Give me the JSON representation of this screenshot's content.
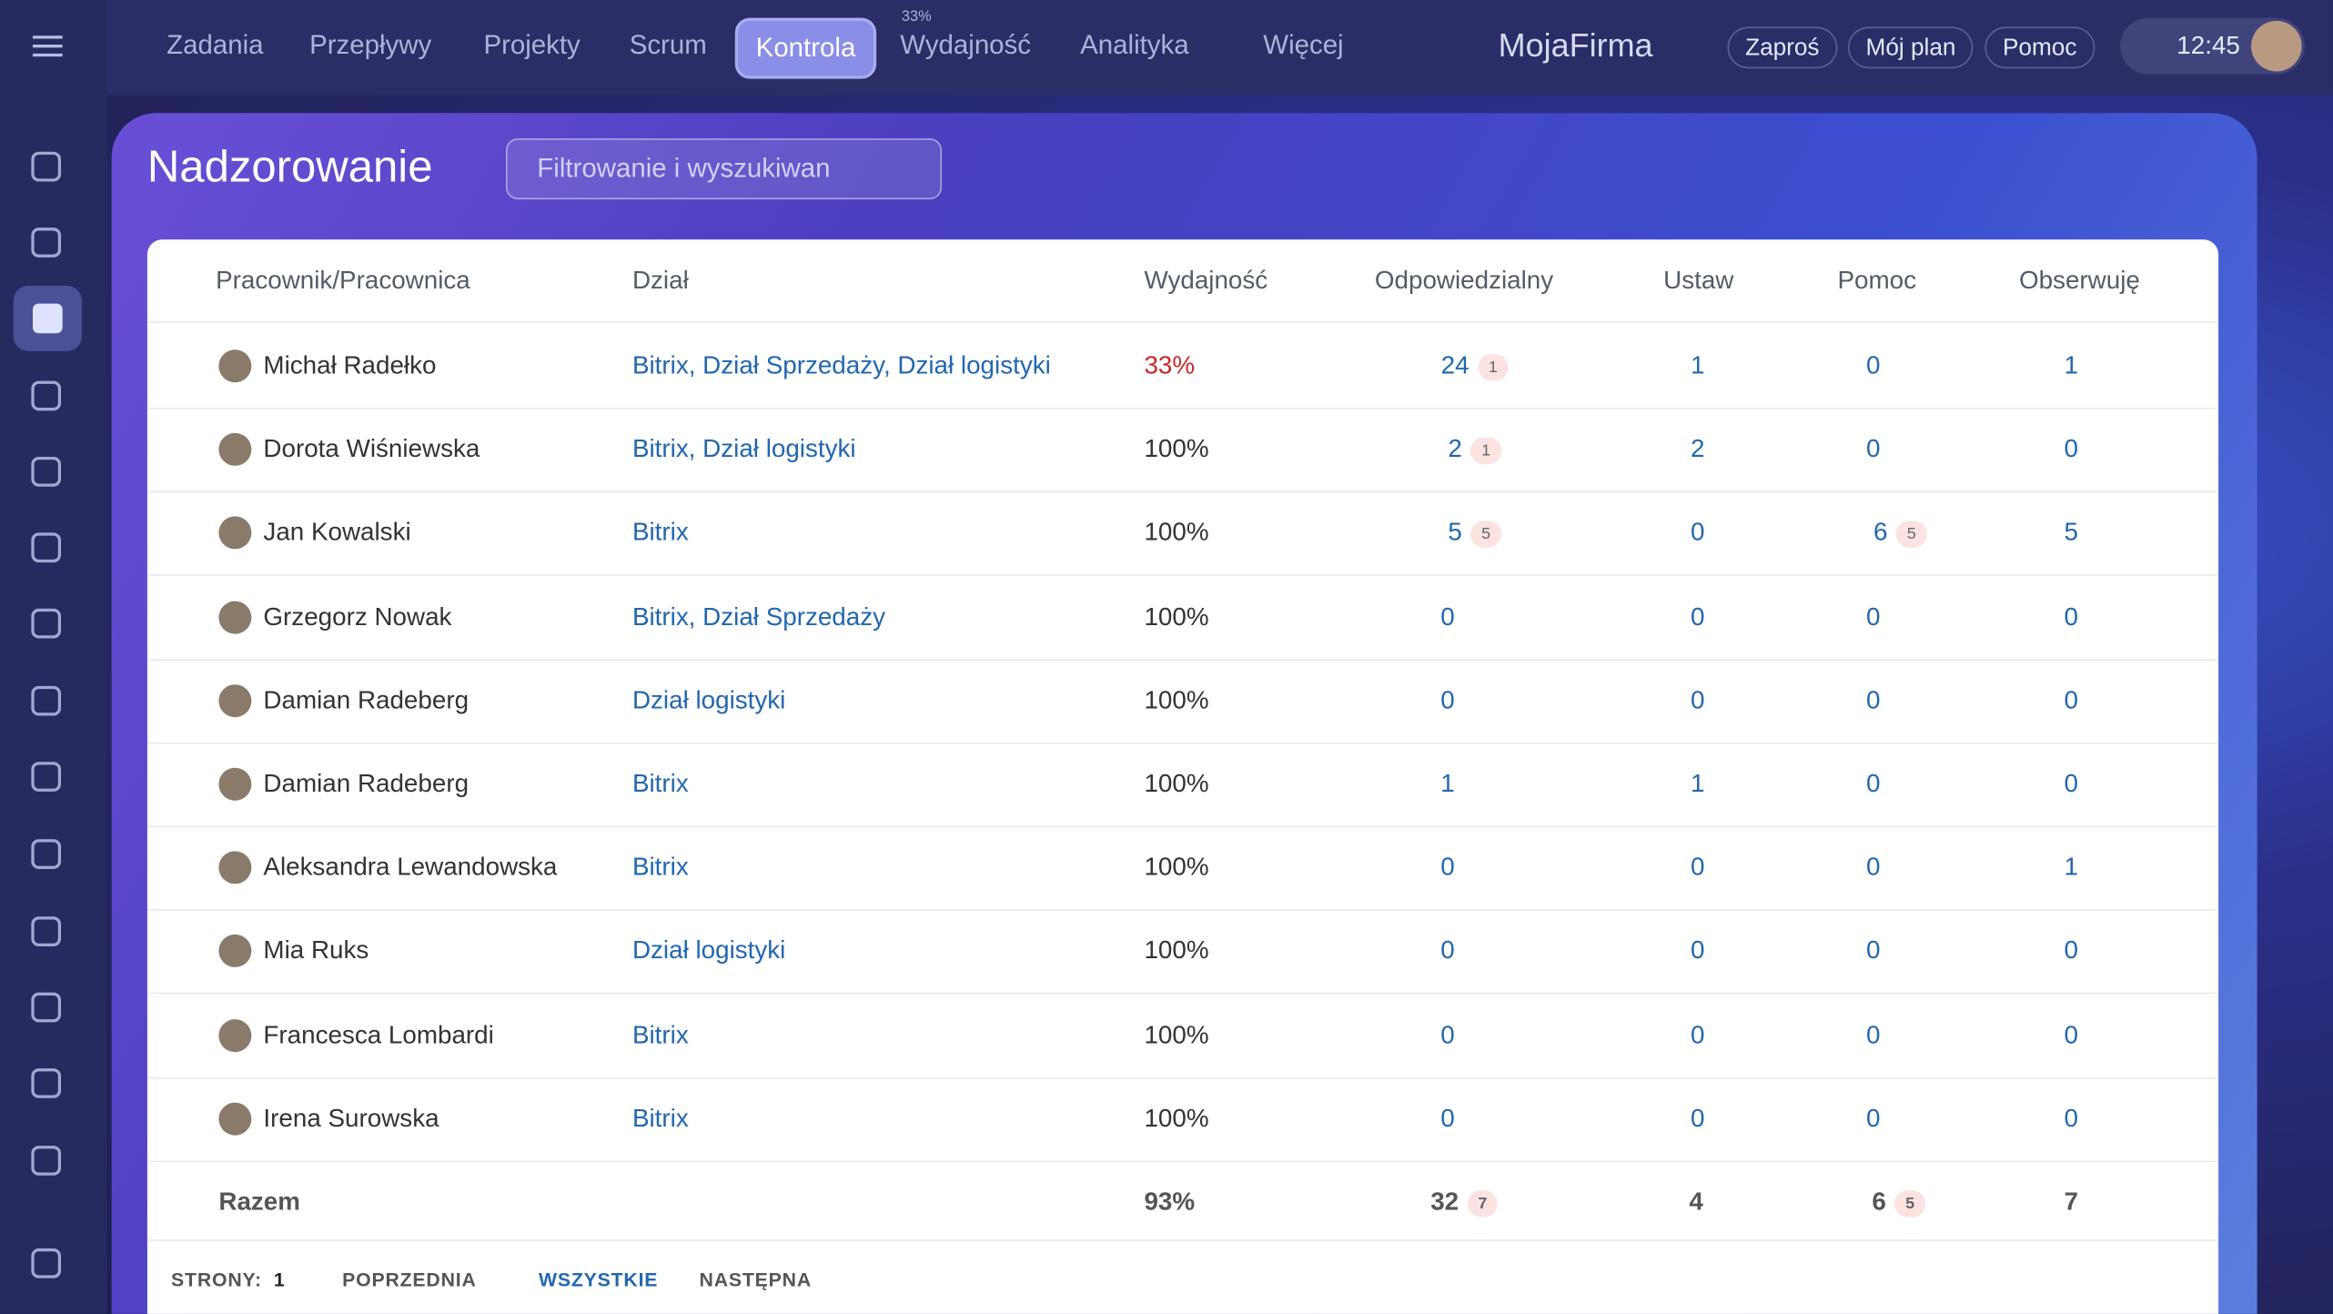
{
  "nav": {
    "items": [
      "Zadania",
      "Przepływy",
      "Projekty",
      "Scrum",
      "Kontrola",
      "Wydajność",
      "Analityka",
      "Więcej"
    ],
    "efficiency_badge": "33%",
    "brand": "MojaFirma",
    "buttons": [
      "Zaproś",
      "Mój plan",
      "Pomoc"
    ],
    "time": "12:45"
  },
  "header": {
    "title": "Nadzorowanie",
    "search_placeholder": "Filtrowanie i wyszukiwan"
  },
  "table": {
    "columns": [
      "Pracownik/Pracownica",
      "Dział",
      "Wydajność",
      "Odpowiedzialny",
      "Ustaw",
      "Pomoc",
      "Obserwuję"
    ],
    "rows": [
      {
        "name": "Michał Radełko",
        "department": "Bitrix, Dział Sprzedaży, Dział logistyki",
        "performance": "33%",
        "responsible": "24",
        "responsible_badge": "1",
        "set": "1",
        "help": "0",
        "observe": "1"
      },
      {
        "name": "Dorota Wiśniewska",
        "department": "Bitrix, Dział logistyki",
        "performance": "100%",
        "responsible": "2",
        "responsible_badge": "1",
        "set": "2",
        "help": "0",
        "observe": "0"
      },
      {
        "name": "Jan Kowalski",
        "department": "Bitrix",
        "performance": "100%",
        "responsible": "5",
        "responsible_badge": "5",
        "set": "0",
        "help": "6",
        "help_badge": "5",
        "observe": "5"
      },
      {
        "name": "Grzegorz Nowak",
        "department": "Bitrix, Dział Sprzedaży",
        "performance": "100%",
        "responsible": "0",
        "set": "0",
        "help": "0",
        "observe": "0"
      },
      {
        "name": "Damian Radeberg",
        "department": "Dział logistyki",
        "performance": "100%",
        "responsible": "0",
        "set": "0",
        "help": "0",
        "observe": "0"
      },
      {
        "name": "Damian Radeberg",
        "department": "Bitrix",
        "performance": "100%",
        "responsible": "1",
        "set": "1",
        "help": "0",
        "observe": "0"
      },
      {
        "name": "Aleksandra Lewandowska",
        "department": "Bitrix",
        "performance": "100%",
        "responsible": "0",
        "set": "0",
        "help": "0",
        "observe": "1"
      },
      {
        "name": "Mia Ruks",
        "department": "Dział logistyki",
        "performance": "100%",
        "responsible": "0",
        "set": "0",
        "help": "0",
        "observe": "0"
      },
      {
        "name": "Francesca Lombardi",
        "department": "Bitrix",
        "performance": "100%",
        "responsible": "0",
        "set": "0",
        "help": "0",
        "observe": "0"
      },
      {
        "name": "Irena Surowska",
        "department": "Bitrix",
        "performance": "100%",
        "responsible": "0",
        "set": "0",
        "help": "0",
        "observe": "0"
      }
    ],
    "total": {
      "label": "Razem",
      "performance": "93%",
      "responsible": "32",
      "responsible_badge": "7",
      "set": "4",
      "help": "6",
      "help_badge": "5",
      "observe": "7"
    }
  },
  "pagination": {
    "pages_label": "STRONY:",
    "current": "1",
    "previous": "POPRZEDNIA",
    "all": "WSZYSTKIE",
    "next": "NASTĘPNA"
  }
}
